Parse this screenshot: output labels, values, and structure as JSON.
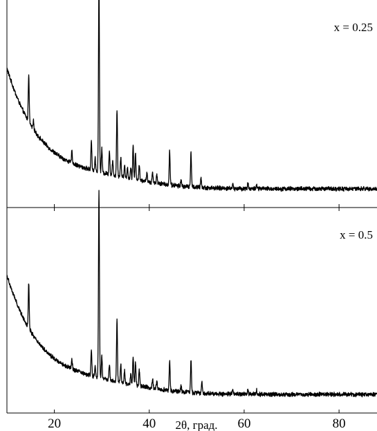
{
  "chart_data": {
    "type": "line",
    "xlabel": "2θ, град.",
    "ylabel": "",
    "xlim": [
      10,
      88
    ],
    "x_ticks": [
      20,
      40,
      60,
      80
    ],
    "x_tick_labels": [
      "20",
      "40",
      "60",
      "80"
    ],
    "grid": false,
    "legend": "none",
    "line_color": "#000000",
    "panels": [
      {
        "label": "x = 0.25",
        "peaks": [
          {
            "x": 14.6,
            "h": 0.24
          },
          {
            "x": 15.6,
            "h": 0.04
          },
          {
            "x": 23.7,
            "h": 0.06
          },
          {
            "x": 27.8,
            "h": 0.15
          },
          {
            "x": 28.6,
            "h": 0.06
          },
          {
            "x": 29.4,
            "h": 0.96
          },
          {
            "x": 30.0,
            "h": 0.12
          },
          {
            "x": 31.6,
            "h": 0.12
          },
          {
            "x": 32.3,
            "h": 0.07
          },
          {
            "x": 33.2,
            "h": 0.33
          },
          {
            "x": 34.0,
            "h": 0.1
          },
          {
            "x": 34.8,
            "h": 0.06
          },
          {
            "x": 35.4,
            "h": 0.05
          },
          {
            "x": 36.1,
            "h": 0.06
          },
          {
            "x": 36.6,
            "h": 0.17
          },
          {
            "x": 37.1,
            "h": 0.13
          },
          {
            "x": 37.9,
            "h": 0.08
          },
          {
            "x": 39.5,
            "h": 0.04
          },
          {
            "x": 40.7,
            "h": 0.05
          },
          {
            "x": 41.6,
            "h": 0.04
          },
          {
            "x": 44.3,
            "h": 0.17
          },
          {
            "x": 46.7,
            "h": 0.03
          },
          {
            "x": 48.8,
            "h": 0.17
          },
          {
            "x": 50.9,
            "h": 0.05
          },
          {
            "x": 57.6,
            "h": 0.02
          },
          {
            "x": 60.8,
            "h": 0.03
          },
          {
            "x": 62.6,
            "h": 0.02
          }
        ]
      },
      {
        "label": "x = 0.5",
        "peaks": [
          {
            "x": 14.6,
            "h": 0.23
          },
          {
            "x": 23.7,
            "h": 0.05
          },
          {
            "x": 27.8,
            "h": 0.13
          },
          {
            "x": 28.6,
            "h": 0.05
          },
          {
            "x": 29.4,
            "h": 0.95
          },
          {
            "x": 30.0,
            "h": 0.11
          },
          {
            "x": 31.6,
            "h": 0.08
          },
          {
            "x": 33.2,
            "h": 0.31
          },
          {
            "x": 34.0,
            "h": 0.09
          },
          {
            "x": 34.8,
            "h": 0.06
          },
          {
            "x": 36.1,
            "h": 0.05
          },
          {
            "x": 36.6,
            "h": 0.15
          },
          {
            "x": 37.1,
            "h": 0.12
          },
          {
            "x": 37.9,
            "h": 0.08
          },
          {
            "x": 40.7,
            "h": 0.05
          },
          {
            "x": 41.6,
            "h": 0.04
          },
          {
            "x": 44.3,
            "h": 0.15
          },
          {
            "x": 46.7,
            "h": 0.03
          },
          {
            "x": 48.8,
            "h": 0.17
          },
          {
            "x": 51.1,
            "h": 0.06
          },
          {
            "x": 57.6,
            "h": 0.02
          },
          {
            "x": 60.8,
            "h": 0.02
          },
          {
            "x": 62.6,
            "h": 0.02
          }
        ]
      }
    ]
  }
}
